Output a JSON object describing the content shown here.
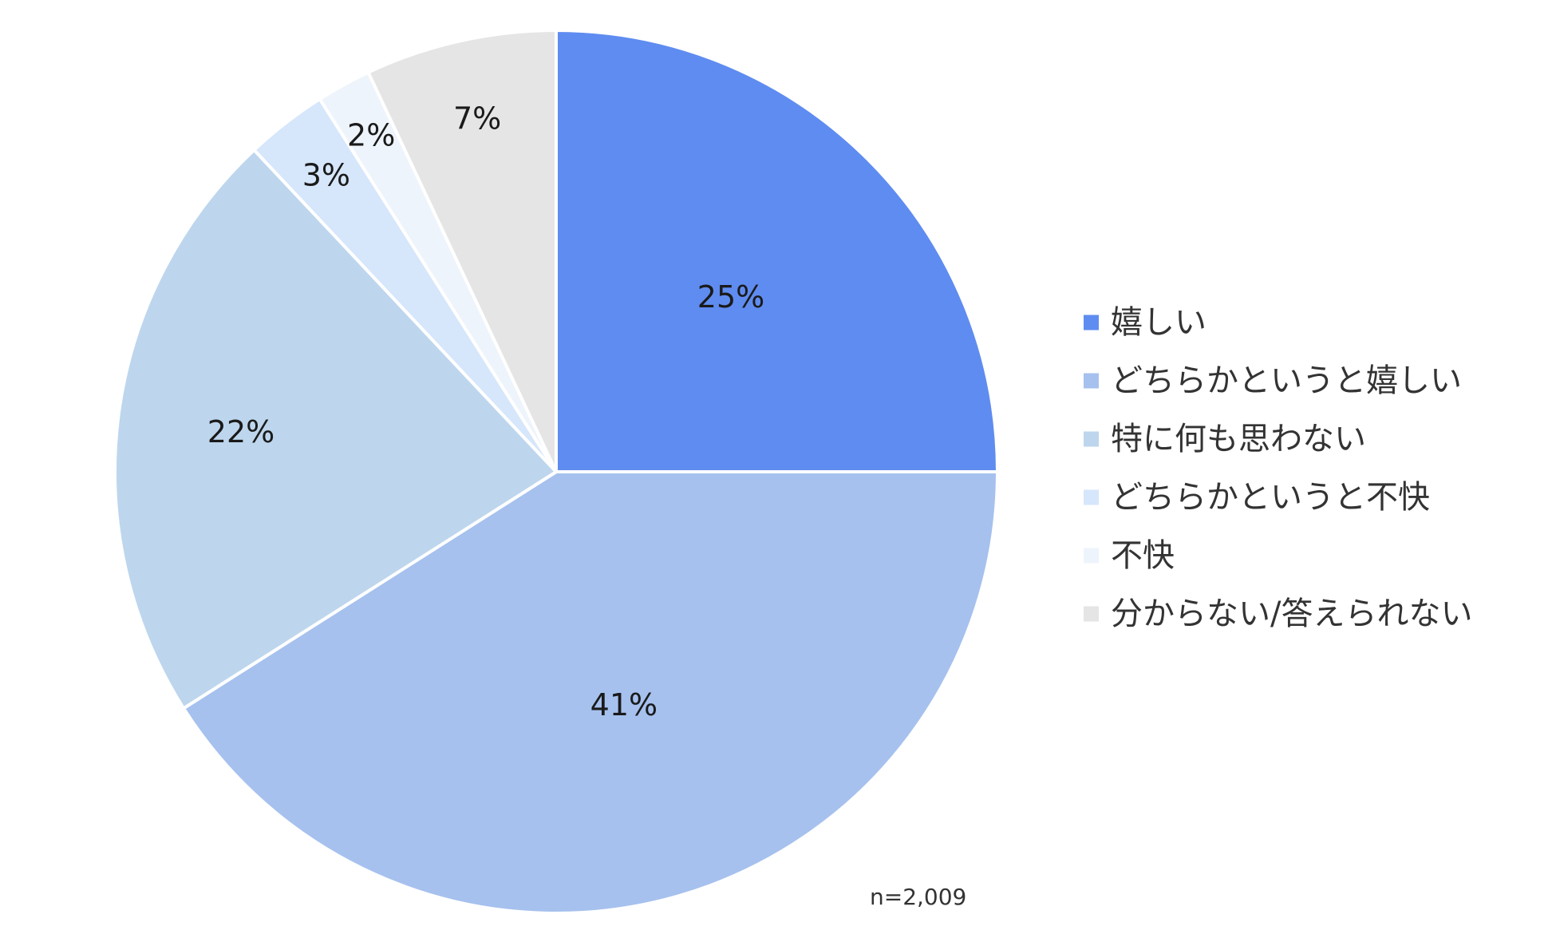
{
  "chart_data": {
    "type": "pie",
    "categories": [
      "嬉しい",
      "どちらかというと嬉しい",
      "特に何も思わない",
      "どちらかというと不快",
      "不快",
      "分からない/答えられない"
    ],
    "values": [
      25,
      41,
      22,
      3,
      2,
      7
    ],
    "value_labels": [
      "25%",
      "41%",
      "22%",
      "3%",
      "2%",
      "7%"
    ],
    "colors": [
      "#5f8cf0",
      "#a6c1ee",
      "#bdd6ed",
      "#d6e6fb",
      "#eef4fb",
      "#e5e5e5"
    ],
    "start_angle": "12 o'clock",
    "direction": "clockwise",
    "legend_position": "right",
    "note": "n=2,009"
  }
}
